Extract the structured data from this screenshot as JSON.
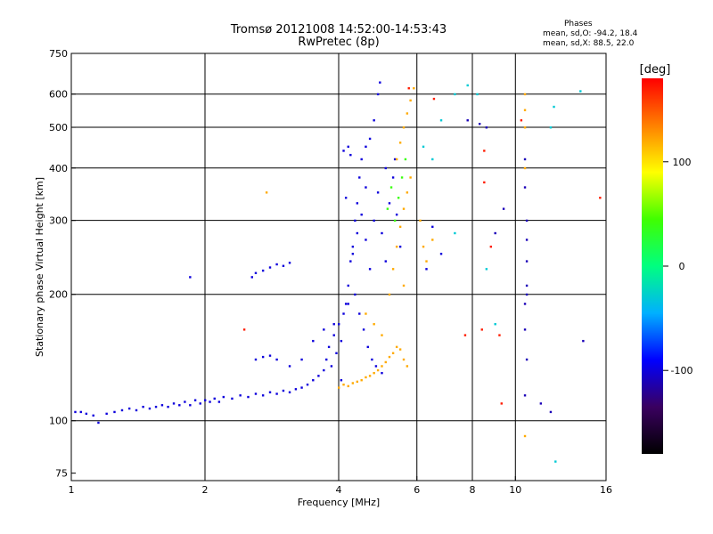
{
  "chart_data": {
    "type": "scatter",
    "title": "Tromsø 20121008 14:52:00-14:53:43",
    "subtitle": "RwPretec (8p)",
    "phase_box": {
      "heading": "Phases",
      "line_o": "mean, sd,O: -94.2, 18.4",
      "line_x": "mean, sd,X:  88.5, 22.0"
    },
    "xlabel": "Frequency [MHz]",
    "ylabel": "Stationary phase Virtual Height [km]",
    "x_scale": "log",
    "y_scale": "log",
    "xlim": [
      1,
      16
    ],
    "ylim": [
      72,
      750
    ],
    "x_ticks": [
      1,
      2,
      4,
      6,
      8,
      10,
      16
    ],
    "x_tick_labels": [
      "1",
      "2",
      "4",
      "6",
      "8",
      "10",
      "16"
    ],
    "y_ticks": [
      75,
      100,
      200,
      300,
      400,
      500,
      600,
      750
    ],
    "y_tick_labels": [
      "75",
      "100",
      "200",
      "300",
      "400",
      "500",
      "600",
      "750"
    ],
    "grid_x": [
      2,
      4,
      6,
      8,
      10
    ],
    "grid_y": [
      100,
      200,
      300,
      400,
      500,
      600
    ],
    "grid": true,
    "colorbar": {
      "label": "[deg]",
      "ticks": [
        100,
        0,
        -100
      ],
      "tick_labels": [
        "100",
        "0",
        "-100"
      ],
      "range": [
        -180,
        180
      ],
      "colors": [
        "#000000",
        "#3a0060",
        "#0000ff",
        "#00b0ff",
        "#00ff80",
        "#40ff00",
        "#ffff00",
        "#ff8000",
        "#ff0000"
      ]
    },
    "series": [
      {
        "color_phase_deg": -100,
        "points": [
          [
            1.02,
            105
          ],
          [
            1.05,
            105
          ],
          [
            1.08,
            104
          ],
          [
            1.12,
            103
          ],
          [
            1.15,
            99
          ],
          [
            1.2,
            104
          ],
          [
            1.25,
            105
          ],
          [
            1.3,
            106
          ],
          [
            1.35,
            107
          ],
          [
            1.4,
            106
          ],
          [
            1.45,
            108
          ],
          [
            1.5,
            107
          ],
          [
            1.55,
            108
          ],
          [
            1.6,
            109
          ],
          [
            1.65,
            108
          ],
          [
            1.7,
            110
          ],
          [
            1.75,
            109
          ],
          [
            1.8,
            111
          ],
          [
            1.85,
            109
          ],
          [
            1.9,
            112
          ],
          [
            1.95,
            110
          ],
          [
            2.0,
            112
          ],
          [
            2.05,
            111
          ],
          [
            2.1,
            113
          ],
          [
            2.15,
            111
          ],
          [
            2.2,
            114
          ],
          [
            2.3,
            113
          ],
          [
            2.4,
            115
          ],
          [
            2.5,
            114
          ],
          [
            2.6,
            116
          ],
          [
            2.7,
            115
          ],
          [
            2.8,
            117
          ],
          [
            2.9,
            116
          ],
          [
            3.0,
            118
          ],
          [
            3.1,
            117
          ],
          [
            3.2,
            119
          ],
          [
            3.3,
            120
          ],
          [
            3.4,
            122
          ],
          [
            3.5,
            125
          ],
          [
            3.6,
            128
          ],
          [
            3.7,
            132
          ],
          [
            3.75,
            140
          ],
          [
            3.8,
            150
          ],
          [
            3.85,
            135
          ],
          [
            3.9,
            160
          ],
          [
            3.95,
            145
          ],
          [
            4.0,
            170
          ],
          [
            4.05,
            155
          ],
          [
            4.1,
            180
          ],
          [
            4.15,
            190
          ],
          [
            4.2,
            210
          ],
          [
            4.25,
            240
          ],
          [
            4.3,
            260
          ],
          [
            4.35,
            300
          ],
          [
            4.4,
            330
          ],
          [
            4.45,
            380
          ],
          [
            4.5,
            420
          ],
          [
            4.6,
            450
          ],
          [
            4.7,
            470
          ],
          [
            4.8,
            520
          ],
          [
            4.9,
            600
          ],
          [
            4.95,
            640
          ],
          [
            4.3,
            250
          ],
          [
            4.4,
            280
          ],
          [
            4.5,
            310
          ],
          [
            4.6,
            270
          ],
          [
            4.7,
            230
          ],
          [
            4.8,
            300
          ],
          [
            4.9,
            350
          ],
          [
            5.0,
            280
          ],
          [
            5.1,
            240
          ],
          [
            5.2,
            330
          ],
          [
            5.3,
            380
          ],
          [
            5.4,
            310
          ],
          [
            5.5,
            260
          ],
          [
            4.35,
            200
          ],
          [
            4.45,
            180
          ],
          [
            4.55,
            165
          ],
          [
            4.65,
            150
          ],
          [
            4.75,
            140
          ],
          [
            4.85,
            135
          ],
          [
            5.0,
            130
          ],
          [
            3.9,
            170
          ],
          [
            3.7,
            165
          ],
          [
            3.5,
            155
          ],
          [
            3.3,
            140
          ],
          [
            3.1,
            135
          ],
          [
            4.1,
            440
          ],
          [
            4.2,
            450
          ],
          [
            4.25,
            430
          ],
          [
            2.55,
            220
          ],
          [
            2.6,
            225
          ],
          [
            2.7,
            228
          ],
          [
            2.8,
            232
          ],
          [
            2.9,
            236
          ],
          [
            3.0,
            234
          ],
          [
            3.1,
            238
          ],
          [
            2.6,
            140
          ],
          [
            2.7,
            142
          ],
          [
            2.8,
            143
          ],
          [
            2.9,
            140
          ],
          [
            1.85,
            220
          ],
          [
            6.3,
            230
          ],
          [
            6.5,
            290
          ],
          [
            6.8,
            250
          ],
          [
            4.05,
            125
          ],
          [
            4.2,
            190
          ],
          [
            4.6,
            360
          ],
          [
            5.1,
            400
          ],
          [
            5.35,
            420
          ],
          [
            4.15,
            340
          ]
        ]
      },
      {
        "color_phase_deg": 120,
        "points": [
          [
            4.0,
            120
          ],
          [
            4.1,
            122
          ],
          [
            4.2,
            121
          ],
          [
            4.3,
            123
          ],
          [
            4.4,
            124
          ],
          [
            4.5,
            125
          ],
          [
            4.6,
            127
          ],
          [
            4.7,
            128
          ],
          [
            4.8,
            130
          ],
          [
            4.9,
            132
          ],
          [
            5.0,
            135
          ],
          [
            5.1,
            138
          ],
          [
            5.2,
            142
          ],
          [
            5.3,
            145
          ],
          [
            5.4,
            150
          ],
          [
            5.5,
            148
          ],
          [
            5.6,
            140
          ],
          [
            5.7,
            135
          ],
          [
            5.2,
            200
          ],
          [
            5.3,
            230
          ],
          [
            5.4,
            260
          ],
          [
            5.5,
            290
          ],
          [
            5.6,
            320
          ],
          [
            5.7,
            350
          ],
          [
            5.8,
            380
          ],
          [
            5.4,
            420
          ],
          [
            5.5,
            460
          ],
          [
            5.6,
            500
          ],
          [
            5.7,
            540
          ],
          [
            5.8,
            580
          ],
          [
            5.9,
            620
          ],
          [
            6.1,
            300
          ],
          [
            6.2,
            260
          ],
          [
            6.3,
            240
          ],
          [
            6.5,
            270
          ],
          [
            2.75,
            350
          ],
          [
            10.5,
            400
          ],
          [
            10.5,
            500
          ],
          [
            10.5,
            550
          ],
          [
            10.5,
            600
          ],
          [
            10.5,
            92
          ],
          [
            4.6,
            180
          ],
          [
            4.8,
            170
          ],
          [
            5.0,
            160
          ],
          [
            5.6,
            210
          ]
        ]
      },
      {
        "color_phase_deg": 40,
        "points": [
          [
            5.15,
            320
          ],
          [
            5.25,
            360
          ],
          [
            5.35,
            300
          ],
          [
            5.45,
            340
          ],
          [
            5.55,
            380
          ],
          [
            5.65,
            420
          ]
        ]
      },
      {
        "color_phase_deg": 170,
        "points": [
          [
            2.45,
            165
          ],
          [
            5.75,
            620
          ],
          [
            6.55,
            585
          ],
          [
            8.5,
            440
          ],
          [
            8.5,
            370
          ],
          [
            8.8,
            260
          ],
          [
            9.2,
            160
          ],
          [
            9.3,
            110
          ],
          [
            10.3,
            520
          ],
          [
            15.5,
            340
          ],
          [
            8.4,
            165
          ],
          [
            7.7,
            160
          ]
        ]
      },
      {
        "color_phase_deg": -30,
        "points": [
          [
            6.8,
            520
          ],
          [
            7.3,
            600
          ],
          [
            7.8,
            630
          ],
          [
            8.2,
            600
          ],
          [
            6.2,
            450
          ],
          [
            6.5,
            420
          ],
          [
            7.3,
            280
          ],
          [
            9.0,
            170
          ],
          [
            8.6,
            230
          ],
          [
            12.0,
            500
          ],
          [
            12.2,
            560
          ],
          [
            14.0,
            610
          ],
          [
            12.3,
            80
          ]
        ]
      },
      {
        "color_phase_deg": -110,
        "points": [
          [
            7.8,
            520
          ],
          [
            8.3,
            510
          ],
          [
            8.6,
            500
          ],
          [
            9.0,
            280
          ],
          [
            9.4,
            320
          ],
          [
            10.5,
            420
          ],
          [
            10.5,
            360
          ],
          [
            10.6,
            300
          ],
          [
            10.6,
            270
          ],
          [
            10.6,
            210
          ],
          [
            10.6,
            200
          ],
          [
            10.5,
            165
          ],
          [
            10.6,
            140
          ],
          [
            10.5,
            115
          ],
          [
            11.4,
            110
          ],
          [
            12.0,
            105
          ],
          [
            14.2,
            155
          ],
          [
            10.5,
            190
          ],
          [
            10.6,
            240
          ]
        ]
      }
    ]
  }
}
